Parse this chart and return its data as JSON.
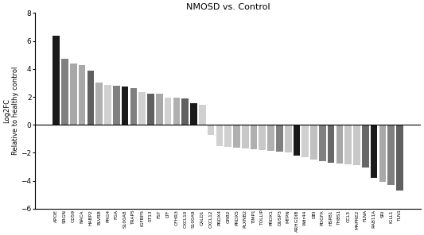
{
  "title": "NMOSD vs. Control",
  "ylabel": "Log2FC\nRelative to healthy control",
  "categories": [
    "APOE",
    "SRGN",
    "CD59",
    "NACA",
    "HABP2",
    "BLVRB",
    "PRG4",
    "FGA",
    "S100A8",
    "TRAP5",
    "IGFBP5",
    "ST13",
    "FST",
    "LTF",
    "CFHR3",
    "CXCL10",
    "S100A9",
    "CALD1",
    "CXCL12",
    "PRDX4",
    "GRB2",
    "PRDX5",
    "PLXNB2",
    "TIMP1",
    "TOLLIP",
    "PRDX1",
    "DUSP3",
    "MTPN",
    "ARHGDIB",
    "Wdr44",
    "DBI",
    "PDGFA",
    "HSPB1",
    "THBS1",
    "CCL5",
    "MAPRE2",
    "FLNA",
    "RAB11A",
    "SRI",
    "IGLL1",
    "TLN1"
  ],
  "values": [
    6.35,
    4.75,
    4.4,
    4.3,
    3.85,
    3.0,
    2.85,
    2.8,
    2.75,
    2.65,
    2.35,
    2.25,
    2.22,
    1.95,
    1.92,
    1.9,
    1.55,
    1.45,
    -0.7,
    -1.5,
    -1.6,
    -1.65,
    -1.68,
    -1.75,
    -1.8,
    -1.85,
    -1.9,
    -2.0,
    -2.2,
    -2.3,
    -2.5,
    -2.6,
    -2.7,
    -2.75,
    -2.85,
    -2.9,
    -3.05,
    -3.8,
    -4.1,
    -4.3,
    -4.7
  ],
  "colors": [
    "#1a1a1a",
    "#808080",
    "#a8a8a8",
    "#a8a8a8",
    "#606060",
    "#b0b0b0",
    "#d0d0d0",
    "#808080",
    "#1a1a1a",
    "#808080",
    "#d0d0d0",
    "#606060",
    "#a8a8a8",
    "#d0d0d0",
    "#b0b0b0",
    "#606060",
    "#1a1a1a",
    "#d0d0d0",
    "#d0d0d0",
    "#d0d0d0",
    "#d0d0d0",
    "#b0b0b0",
    "#c8c8c8",
    "#b0b0b0",
    "#c8c8c8",
    "#b0b0b0",
    "#808080",
    "#c8c8c8",
    "#1a1a1a",
    "#d0d0d0",
    "#c0c0c0",
    "#808080",
    "#686868",
    "#a8a8a8",
    "#c8c8c8",
    "#c8c8c8",
    "#686868",
    "#1a1a1a",
    "#a8a8a8",
    "#808080",
    "#606060"
  ],
  "ylim": [
    -6,
    8
  ],
  "yticks": [
    -6,
    -4,
    -2,
    0,
    2,
    4,
    6,
    8
  ]
}
